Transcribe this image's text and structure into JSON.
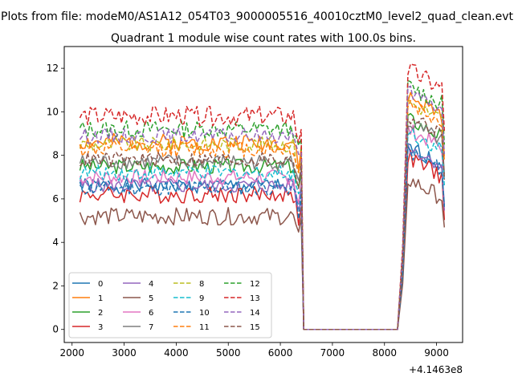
{
  "figure": {
    "suptitle": "Plots from file: modeM0/AS1A12_054T03_9000005516_40010cztM0_level2_quad_clean.evt",
    "title": "Quadrant 1 module wise count rates with 100.0s bins.",
    "x_offset_label": "+4.1463e8"
  },
  "chart_data": {
    "type": "line",
    "title": "Quadrant 1 module wise count rates with 100.0s bins.",
    "xlabel": "",
    "ylabel": "",
    "x_offset": 414630000,
    "x_offset_label": "+4.1463e8",
    "xlim": [
      1850,
      9500
    ],
    "ylim": [
      -0.6,
      13.0
    ],
    "xticks": [
      2000,
      3000,
      4000,
      5000,
      6000,
      7000,
      8000,
      9000
    ],
    "yticks": [
      0,
      2,
      4,
      6,
      8,
      10,
      12
    ],
    "grid": false,
    "legend": {
      "placement": "lower-left",
      "columns": 4
    },
    "gaps": [
      [
        6450,
        8250
      ]
    ],
    "segments": [
      [
        2150,
        6450
      ],
      [
        8250,
        9150
      ]
    ],
    "series": [
      {
        "name": "0",
        "color": "#1f77b4",
        "dash": "solid",
        "level1": 6.6,
        "level2": 7.5,
        "spread": 0.35,
        "seed": 1
      },
      {
        "name": "1",
        "color": "#ff7f0e",
        "dash": "solid",
        "level1": 8.6,
        "level2": 9.8,
        "spread": 0.4,
        "seed": 2
      },
      {
        "name": "2",
        "color": "#2ca02c",
        "dash": "solid",
        "level1": 7.5,
        "level2": 8.8,
        "spread": 0.35,
        "seed": 3
      },
      {
        "name": "3",
        "color": "#d62728",
        "dash": "solid",
        "level1": 6.2,
        "level2": 7.0,
        "spread": 0.4,
        "seed": 4
      },
      {
        "name": "4",
        "color": "#9467bd",
        "dash": "solid",
        "level1": 6.6,
        "level2": 7.5,
        "spread": 0.35,
        "seed": 5
      },
      {
        "name": "5",
        "color": "#8c564b",
        "dash": "solid",
        "level1": 5.2,
        "level2": 6.0,
        "spread": 0.4,
        "seed": 6
      },
      {
        "name": "6",
        "color": "#e377c2",
        "dash": "solid",
        "level1": 7.0,
        "level2": 8.3,
        "spread": 0.35,
        "seed": 7
      },
      {
        "name": "7",
        "color": "#7f7f7f",
        "dash": "solid",
        "level1": 7.7,
        "level2": 8.6,
        "spread": 0.35,
        "seed": 8
      },
      {
        "name": "8",
        "color": "#bcbd22",
        "dash": "dashed",
        "level1": 8.5,
        "level2": 9.6,
        "spread": 0.35,
        "seed": 9
      },
      {
        "name": "9",
        "color": "#17becf",
        "dash": "dashed",
        "level1": 7.2,
        "level2": 8.2,
        "spread": 0.35,
        "seed": 10
      },
      {
        "name": "10",
        "color": "#1f77b4",
        "dash": "dashed",
        "level1": 6.5,
        "level2": 7.3,
        "spread": 0.35,
        "seed": 11
      },
      {
        "name": "11",
        "color": "#ff7f0e",
        "dash": "dashed",
        "level1": 8.3,
        "level2": 9.5,
        "spread": 0.4,
        "seed": 12
      },
      {
        "name": "12",
        "color": "#2ca02c",
        "dash": "dashed",
        "level1": 9.2,
        "level2": 10.3,
        "spread": 0.4,
        "seed": 13
      },
      {
        "name": "13",
        "color": "#d62728",
        "dash": "dashed",
        "level1": 9.8,
        "level2": 11.0,
        "spread": 0.45,
        "seed": 14
      },
      {
        "name": "14",
        "color": "#9467bd",
        "dash": "dashed",
        "level1": 8.9,
        "level2": 10.0,
        "spread": 0.35,
        "seed": 15
      },
      {
        "name": "15",
        "color": "#8c564b",
        "dash": "dashed",
        "level1": 7.8,
        "level2": 8.9,
        "spread": 0.35,
        "seed": 16
      }
    ]
  }
}
